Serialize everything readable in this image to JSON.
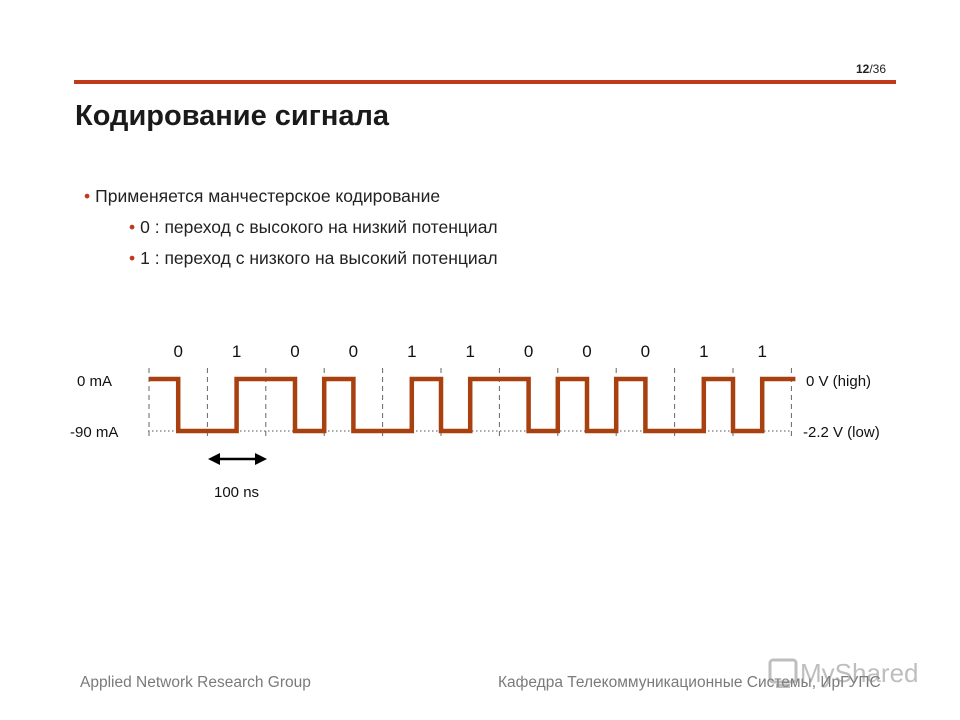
{
  "page": {
    "current": "12",
    "total": "/36"
  },
  "title": "Кодирование сигнала",
  "bullets": [
    {
      "text": "Применяется манчестерское кодирование"
    },
    {
      "text": "0 : переход с высокого на низкий потенциал"
    },
    {
      "text": "1 : переход с низкого на высокий потенциал"
    }
  ],
  "diagram": {
    "bits": [
      "0",
      "1",
      "0",
      "0",
      "1",
      "1",
      "0",
      "0",
      "0",
      "1",
      "1"
    ],
    "left_labels": {
      "high": "0 mA",
      "low": "-90 mA"
    },
    "right_labels": {
      "high": "0 V (high)",
      "low": "-2.2 V (low)"
    },
    "period_label": "100 ns",
    "signal_color": "#a8400f"
  },
  "footer": {
    "left": "Applied Network Research Group",
    "right": "Кафедра Телекоммуникационные Системы, ИрГУПС"
  },
  "watermark": {
    "text": "MyShared"
  },
  "colors": {
    "accent": "#c0391c",
    "footer_text": "#7a7a7a"
  }
}
